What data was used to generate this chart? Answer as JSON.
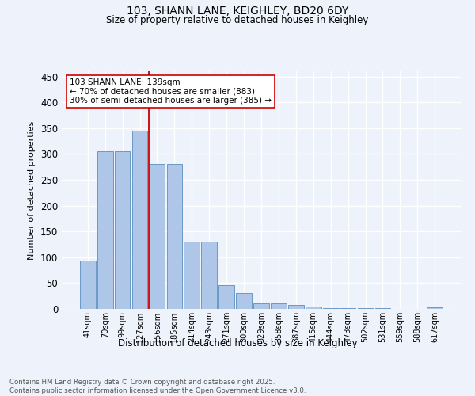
{
  "title1": "103, SHANN LANE, KEIGHLEY, BD20 6DY",
  "title2": "Size of property relative to detached houses in Keighley",
  "xlabel": "Distribution of detached houses by size in Keighley",
  "ylabel": "Number of detached properties",
  "categories": [
    "41sqm",
    "70sqm",
    "99sqm",
    "127sqm",
    "156sqm",
    "185sqm",
    "214sqm",
    "243sqm",
    "271sqm",
    "300sqm",
    "329sqm",
    "358sqm",
    "387sqm",
    "415sqm",
    "444sqm",
    "473sqm",
    "502sqm",
    "531sqm",
    "559sqm",
    "588sqm",
    "617sqm"
  ],
  "values": [
    93,
    305,
    305,
    345,
    280,
    280,
    130,
    130,
    46,
    30,
    11,
    11,
    7,
    5,
    2,
    2,
    1,
    1,
    0,
    0,
    3
  ],
  "bar_color": "#aec6e8",
  "bar_edge_color": "#5a8fc0",
  "vline_x": 3.5,
  "vline_color": "#cc0000",
  "annotation_text": "103 SHANN LANE: 139sqm\n← 70% of detached houses are smaller (883)\n30% of semi-detached houses are larger (385) →",
  "annotation_box_facecolor": "#ffffff",
  "annotation_box_edgecolor": "#cc0000",
  "ylim": [
    0,
    460
  ],
  "yticks": [
    0,
    50,
    100,
    150,
    200,
    250,
    300,
    350,
    400,
    450
  ],
  "background_color": "#eef2fb",
  "grid_color": "#ffffff",
  "footnote": "Contains HM Land Registry data © Crown copyright and database right 2025.\nContains public sector information licensed under the Open Government Licence v3.0."
}
